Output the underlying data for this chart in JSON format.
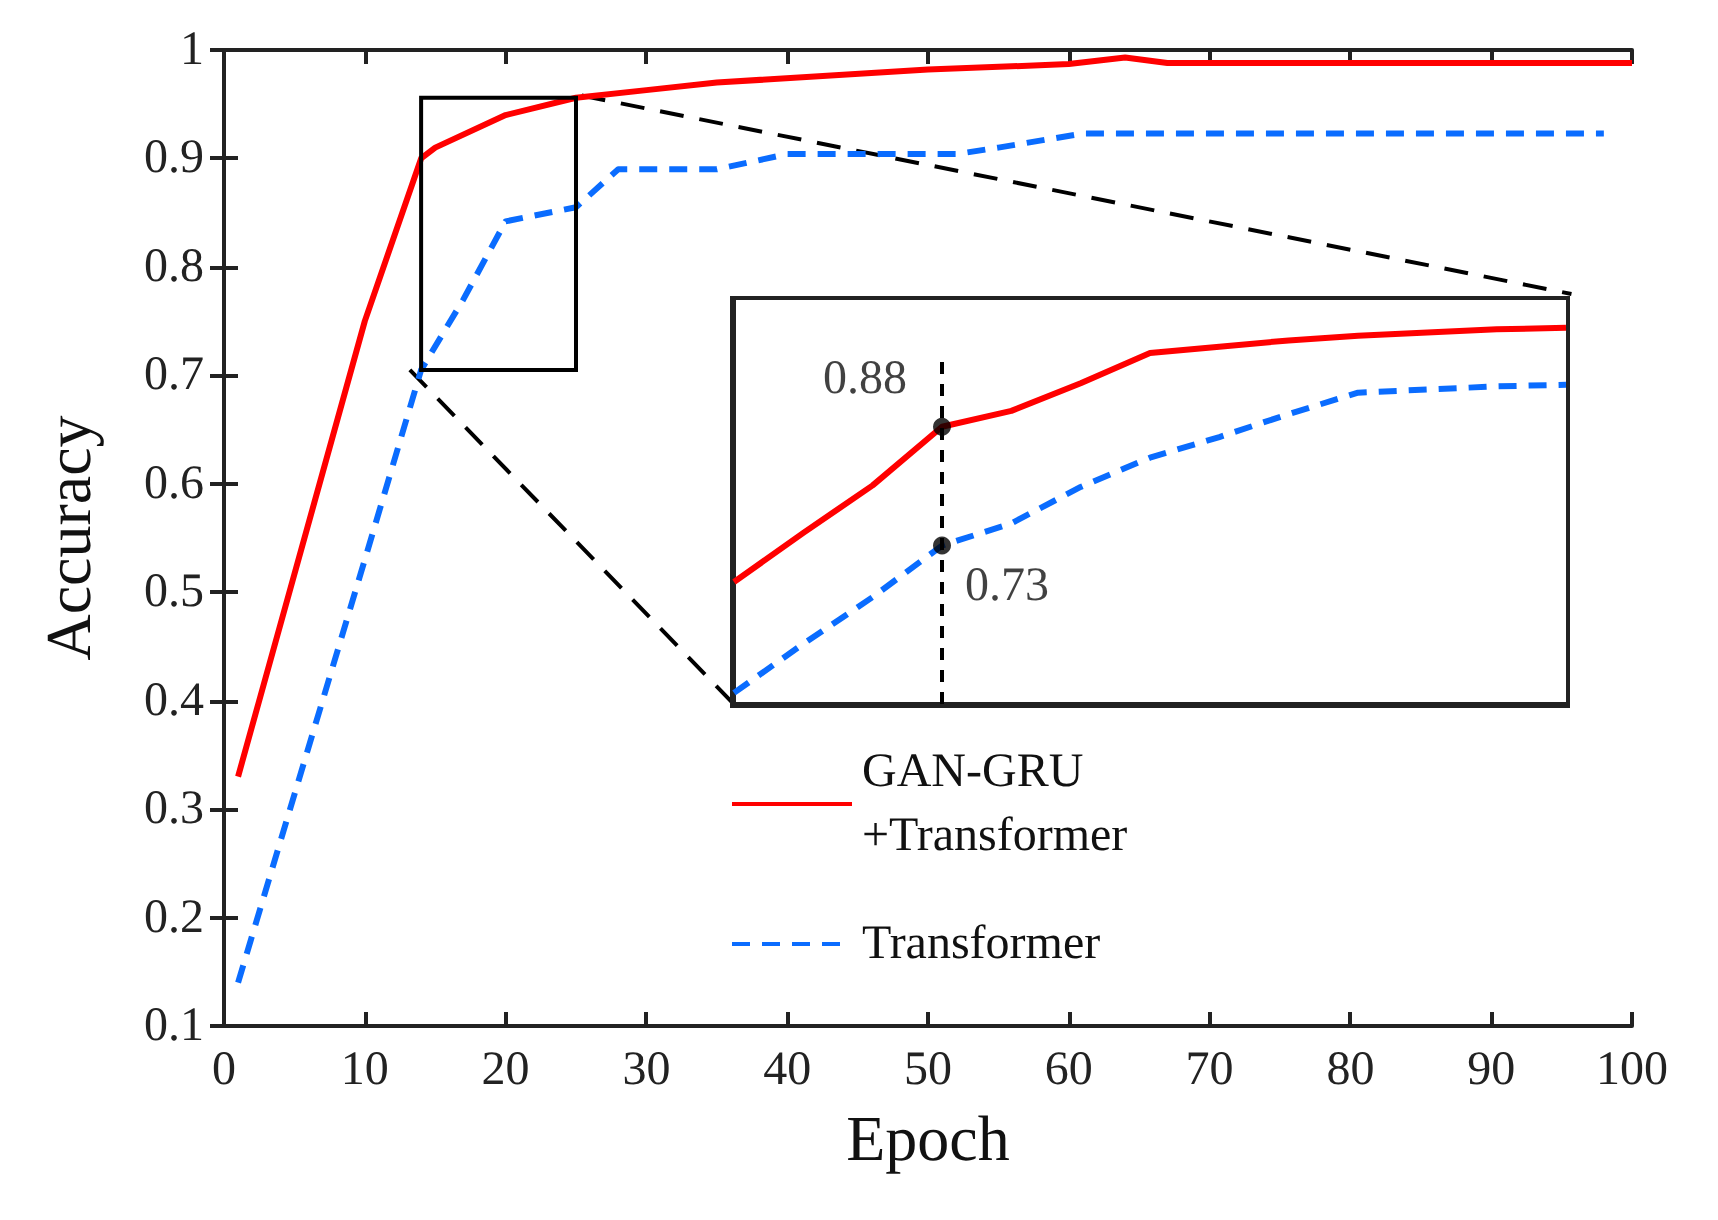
{
  "chart_data": [
    {
      "type": "line",
      "xlabel": "Epoch",
      "ylabel": "Accuracy",
      "xlim": [
        0,
        100
      ],
      "xticks": [
        0,
        10,
        20,
        30,
        40,
        50,
        60,
        70,
        80,
        90,
        100
      ],
      "ylim": [
        0.1,
        1
      ],
      "yticks": [
        0.1,
        0.2,
        0.3,
        0.4,
        0.5,
        0.6,
        0.7,
        0.8,
        0.9,
        1
      ],
      "legend": "right",
      "series": [
        {
          "name": "GAN-GRU\n+Transformer",
          "color": "#ff0000",
          "line_style": "solid",
          "x": [
            1,
            10,
            14,
            15,
            20,
            25,
            30,
            35,
            50,
            60,
            64,
            67,
            100
          ],
          "values": [
            0.33,
            0.75,
            0.9,
            0.91,
            0.94,
            0.956,
            0.963,
            0.97,
            0.982,
            0.987,
            0.993,
            0.988,
            0.988
          ]
        },
        {
          "name": "Transformer",
          "color": "#0a6cff",
          "line_style": "dashed",
          "x": [
            1,
            10,
            14,
            17,
            20,
            25,
            28,
            35,
            40,
            52,
            55,
            61,
            98
          ],
          "values": [
            0.14,
            0.53,
            0.705,
            0.77,
            0.842,
            0.855,
            0.89,
            0.89,
            0.904,
            0.904,
            0.91,
            0.923,
            0.923
          ]
        },
        {
          "type": "line",
          "color": "#000000",
          "line_style": "dashed",
          "x": [
            25.4,
            95.7
          ],
          "values": [
            0.958,
            0.775
          ]
        },
        {
          "type": "line",
          "color": "#000000",
          "line_style": "dashed",
          "x": [
            13.2,
            36.2
          ],
          "values": [
            0.705,
            0.397
          ]
        }
      ]
    },
    {
      "type": "line",
      "categories": [
        null,
        null,
        null,
        null,
        null,
        null,
        null,
        null,
        null,
        null,
        null,
        null,
        null
      ],
      "ylim": [
        0.53,
        1.04
      ],
      "tick_labels": false,
      "series": [
        {
          "color": "#ff0000",
          "line_style": "solid",
          "values": [
            0.684,
            0.746,
            0.806,
            0.88,
            0.9,
            0.935,
            0.973,
            0.981,
            0.989,
            0.995,
            0.999,
            1.003,
            1.005
          ],
          "value_labels": [
            null,
            null,
            null,
            "0.88",
            null,
            null,
            null,
            null,
            null,
            null,
            null,
            null,
            null
          ]
        },
        {
          "color": "#0a6cff",
          "line_style": "dashed",
          "values": [
            0.544,
            0.606,
            0.665,
            0.73,
            0.758,
            0.804,
            0.841,
            0.867,
            0.896,
            0.923,
            0.927,
            0.931,
            0.933
          ],
          "value_labels": [
            null,
            null,
            null,
            "0.73",
            null,
            null,
            null,
            null,
            null,
            null,
            null,
            null,
            null
          ]
        }
      ]
    }
  ]
}
